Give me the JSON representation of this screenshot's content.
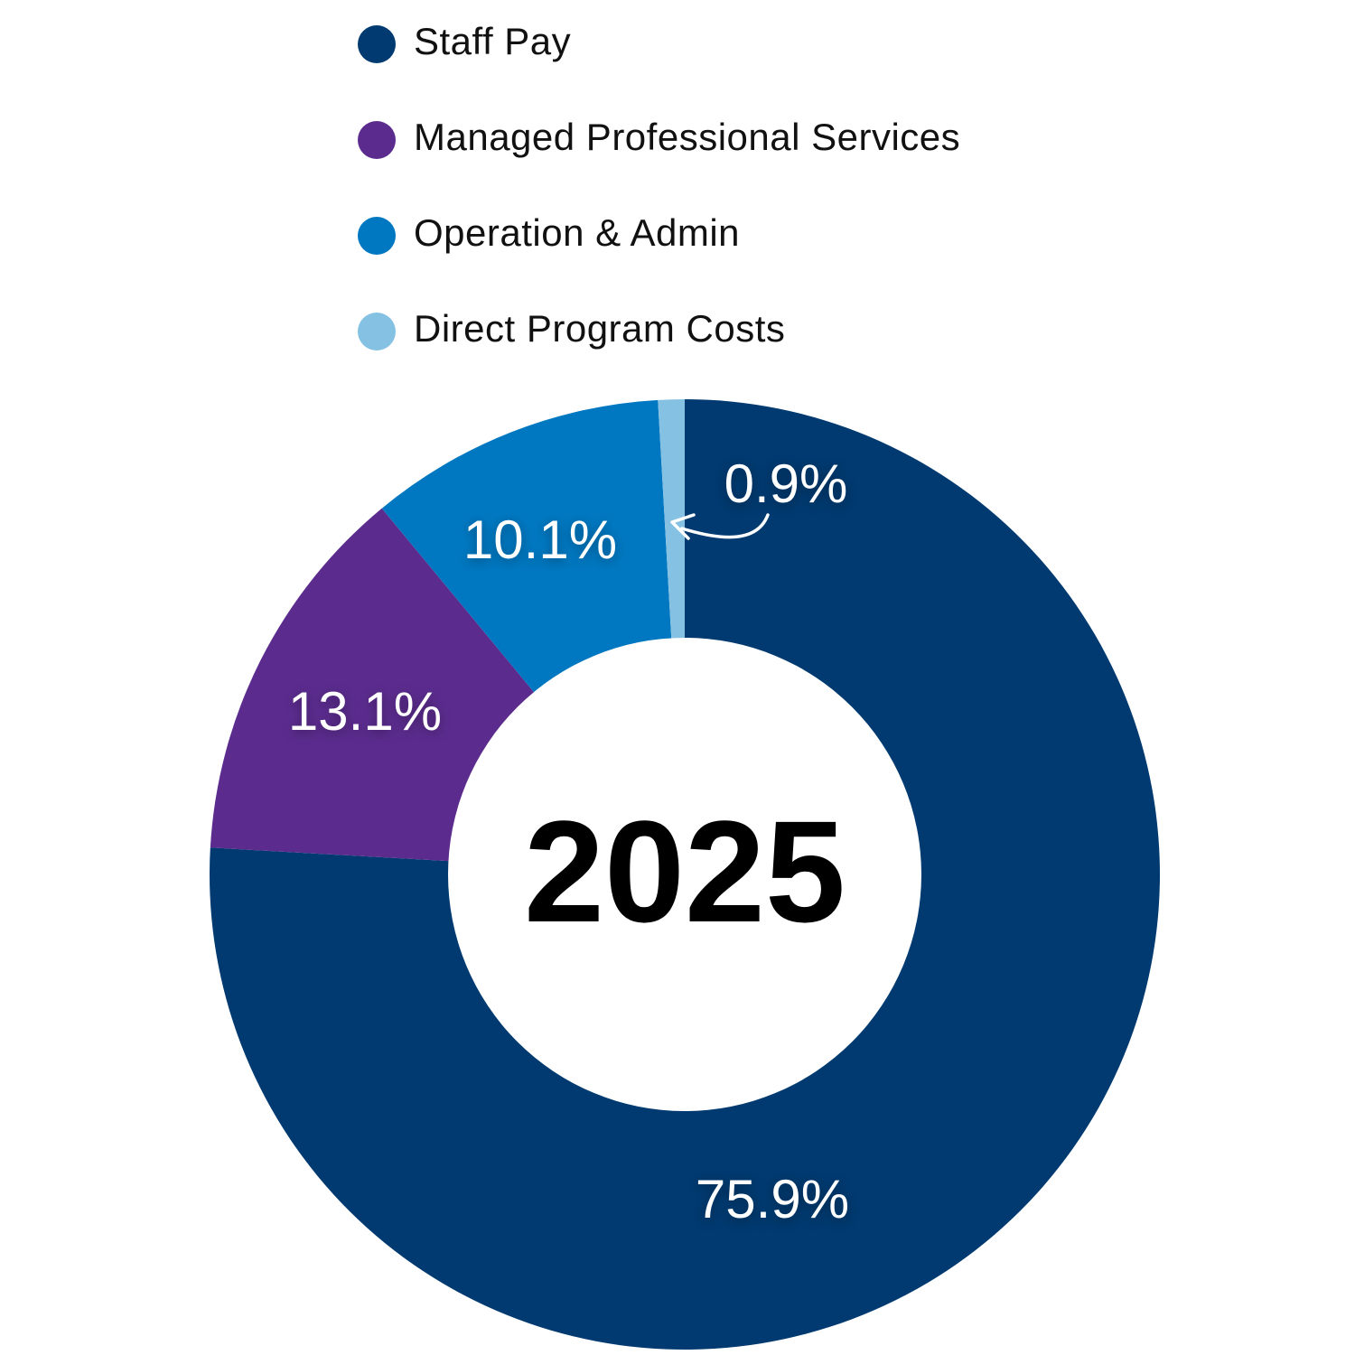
{
  "chart_data": {
    "type": "pie",
    "variant": "donut",
    "center_label": "2025",
    "legend_placement": "top",
    "slices": [
      {
        "name": "Staff Pay",
        "value": 75.9,
        "label": "75.9%",
        "color": "#003A70"
      },
      {
        "name": "Managed Professional Services",
        "value": 13.1,
        "label": "13.1%",
        "color": "#5B2C8E"
      },
      {
        "name": "Operation & Admin",
        "value": 10.1,
        "label": "10.1%",
        "color": "#0078C1"
      },
      {
        "name": "Direct Program Costs",
        "value": 0.9,
        "label": "0.9%",
        "color": "#85C1E3"
      }
    ],
    "legend": [
      {
        "label": "Staff Pay",
        "color": "#003A70"
      },
      {
        "label": "Managed Professional Services",
        "color": "#5B2C8E"
      },
      {
        "label": "Operation & Admin",
        "color": "#0078C1"
      },
      {
        "label": "Direct Program Costs",
        "color": "#85C1E3"
      }
    ]
  }
}
